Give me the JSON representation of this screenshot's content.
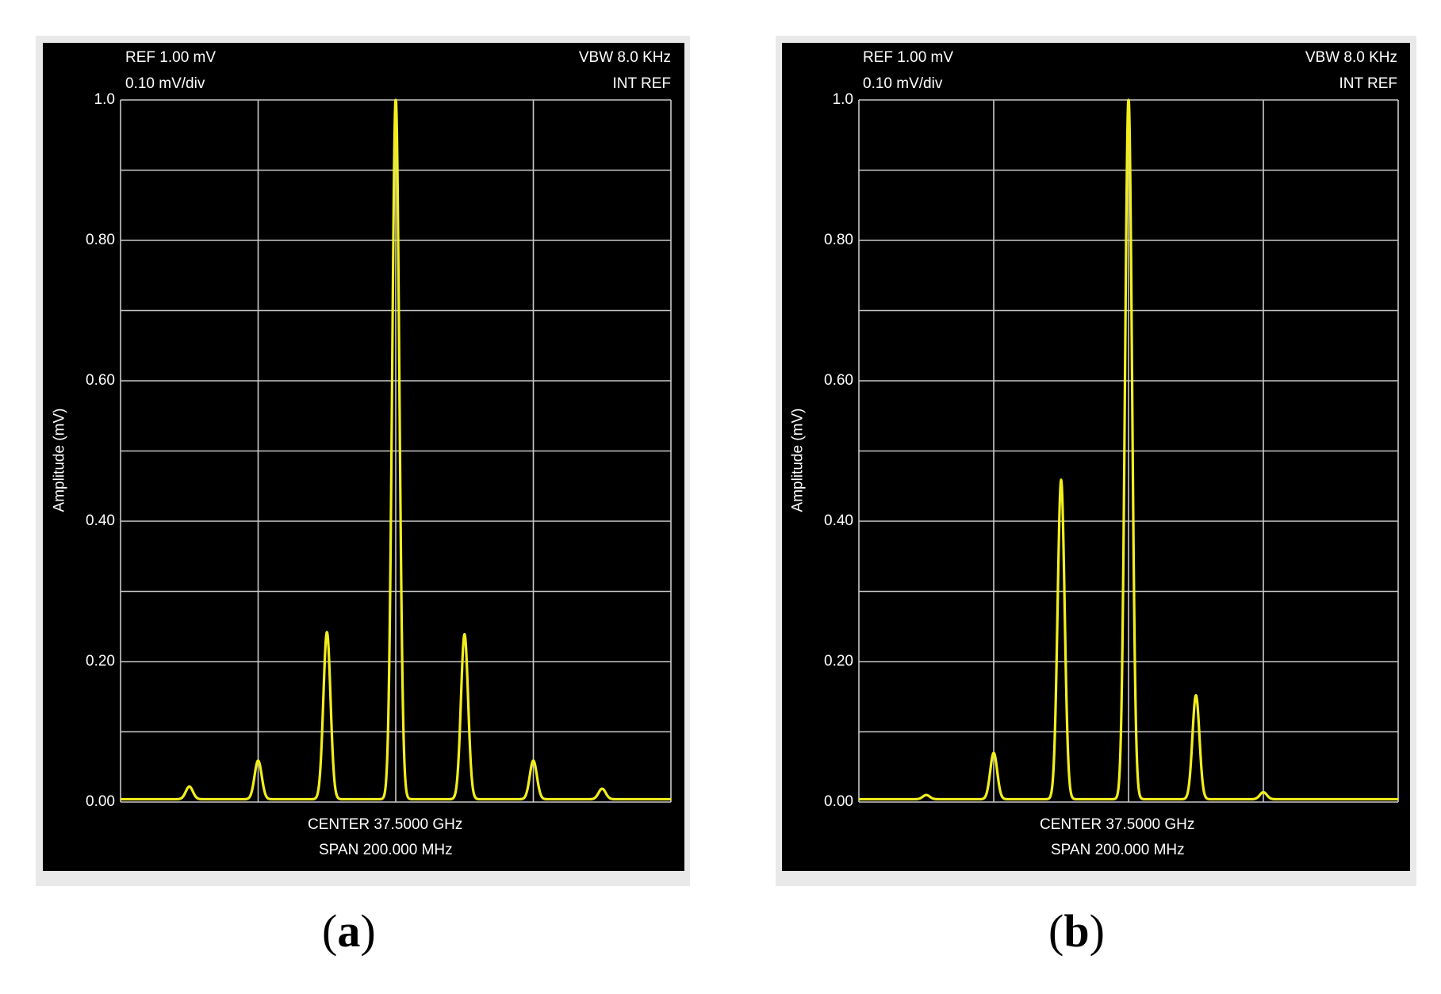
{
  "chart_data": [
    {
      "type": "line",
      "panel": "a",
      "header": {
        "ref": "REF 1.00 mV",
        "scale": "0.10 mV/div",
        "vbw": "VBW 8.0 KHz",
        "ref_mode": "INT REF"
      },
      "ylabel": "Amplitude (mV)",
      "ylim": [
        0,
        1.0
      ],
      "y_ticks": [
        "1.0",
        "0.80",
        "0.60",
        "0.40",
        "0.20",
        "0.00"
      ],
      "y_tick_values": [
        1.0,
        0.8,
        0.6,
        0.4,
        0.2,
        0.0
      ],
      "footer": {
        "center": "CENTER 37.5000 GHz",
        "span": "SPAN 200.000 MHz"
      },
      "x_divisions": 4,
      "y_divisions": 10,
      "grid": true,
      "line_color": "#f2ee1c",
      "peaks": [
        {
          "x": 0.125,
          "y": 0.018
        },
        {
          "x": 0.25,
          "y": 0.055
        },
        {
          "x": 0.375,
          "y": 0.238
        },
        {
          "x": 0.5,
          "y": 1.0
        },
        {
          "x": 0.625,
          "y": 0.235
        },
        {
          "x": 0.75,
          "y": 0.055
        },
        {
          "x": 0.875,
          "y": 0.015
        }
      ],
      "caption": "a"
    },
    {
      "type": "line",
      "panel": "b",
      "header": {
        "ref": "REF 1.00 mV",
        "scale": "0.10 mV/div",
        "vbw": "VBW 8.0 KHz",
        "ref_mode": "INT REF"
      },
      "ylabel": "Amplitude (mV)",
      "ylim": [
        0,
        1.0
      ],
      "y_ticks": [
        "1.0",
        "0.80",
        "0.60",
        "0.40",
        "0.20",
        "0.00"
      ],
      "y_tick_values": [
        1.0,
        0.8,
        0.6,
        0.4,
        0.2,
        0.0
      ],
      "footer": {
        "center": "CENTER 37.5000 GHz",
        "span": "SPAN 200.000 MHz"
      },
      "x_divisions": 4,
      "y_divisions": 10,
      "grid": true,
      "line_color": "#f2ee1c",
      "peaks": [
        {
          "x": 0.125,
          "y": 0.006
        },
        {
          "x": 0.25,
          "y": 0.066
        },
        {
          "x": 0.375,
          "y": 0.455
        },
        {
          "x": 0.5,
          "y": 1.0
        },
        {
          "x": 0.625,
          "y": 0.148
        },
        {
          "x": 0.75,
          "y": 0.01
        }
      ],
      "caption": "b"
    }
  ]
}
